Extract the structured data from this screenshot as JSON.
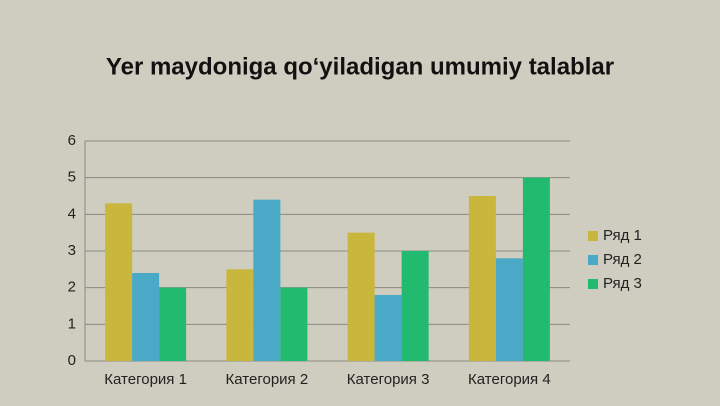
{
  "chart_data": {
    "type": "bar",
    "title": "Yer maydoniga qo‘yiladigan umumiy talablar",
    "categories": [
      "Категория 1",
      "Категория 2",
      "Категория 3",
      "Категория 4"
    ],
    "series": [
      {
        "name": "Ряд 1",
        "color": "#c9b63c",
        "values": [
          4.3,
          2.5,
          3.5,
          4.5
        ]
      },
      {
        "name": "Ряд 2",
        "color": "#4aa9c6",
        "values": [
          2.4,
          4.4,
          1.8,
          2.8
        ]
      },
      {
        "name": "Ряд 3",
        "color": "#22ba6e",
        "values": [
          2,
          2,
          3,
          5
        ]
      }
    ],
    "ylim": [
      0,
      6
    ],
    "yticks": [
      0,
      1,
      2,
      3,
      4,
      5,
      6
    ],
    "grid": true,
    "legend": "right"
  }
}
